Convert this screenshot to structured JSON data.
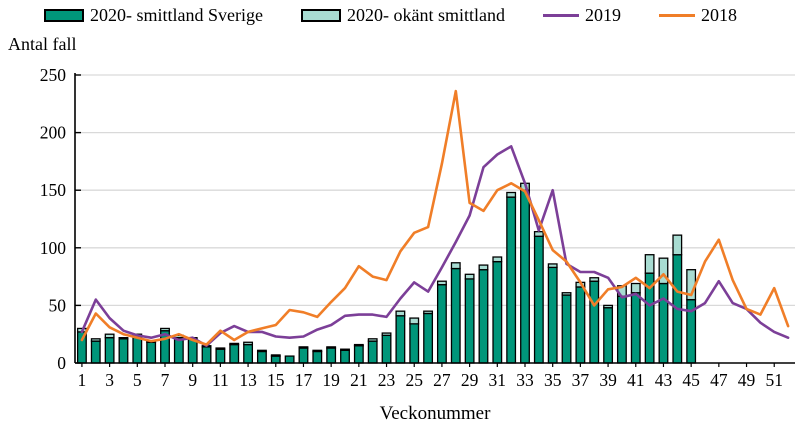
{
  "legend": {
    "items": [
      {
        "label": "2020- smittland Sverige",
        "marker": "bar",
        "color": "#00967A"
      },
      {
        "label": "2020- okänt smittland",
        "marker": "bar",
        "color": "#A8DCD2"
      },
      {
        "label": "2019",
        "marker": "line",
        "color": "#7C3F98"
      },
      {
        "label": "2018",
        "marker": "line",
        "color": "#F07E28"
      }
    ]
  },
  "y_axis": {
    "title": "Antal fall",
    "ticks": [
      0,
      50,
      100,
      150,
      200,
      250
    ]
  },
  "x_axis": {
    "title": "Veckonummer",
    "tick_labels": [
      1,
      3,
      5,
      7,
      9,
      11,
      13,
      15,
      17,
      19,
      21,
      23,
      25,
      27,
      29,
      31,
      33,
      35,
      37,
      39,
      41,
      43,
      45,
      47,
      49,
      51
    ]
  },
  "colors": {
    "bar_sverige": "#00967A",
    "bar_okant": "#A8DCD2",
    "line_2019": "#7C3F98",
    "line_2018": "#F07E28",
    "grid": "#D9D9D9",
    "axis": "#000000",
    "bar_border": "#000000"
  },
  "chart_data": {
    "type": "bar",
    "subtype": "stacked-bars-with-lines",
    "title": "",
    "xlabel": "Veckonummer",
    "ylabel": "Antal fall",
    "ylim": [
      0,
      250
    ],
    "grid": true,
    "legend_position": "top",
    "x": [
      1,
      2,
      3,
      4,
      5,
      6,
      7,
      8,
      9,
      10,
      11,
      12,
      13,
      14,
      15,
      16,
      17,
      18,
      19,
      20,
      21,
      22,
      23,
      24,
      25,
      26,
      27,
      28,
      29,
      30,
      31,
      32,
      33,
      34,
      35,
      36,
      37,
      38,
      39,
      40,
      41,
      42,
      43,
      44,
      45,
      46,
      47,
      48,
      49,
      50,
      51,
      52
    ],
    "series": [
      {
        "name": "2020- smittland Sverige",
        "type": "bar",
        "stack": "2020",
        "color": "#00967A",
        "values": [
          27,
          19,
          22,
          21,
          23,
          18,
          28,
          22,
          21,
          14,
          12,
          16,
          16,
          10,
          6,
          6,
          13,
          10,
          13,
          11,
          15,
          19,
          24,
          41,
          34,
          43,
          68,
          82,
          73,
          81,
          88,
          144,
          150,
          110,
          83,
          59,
          66,
          71,
          48,
          58,
          61,
          78,
          69,
          94,
          55,
          null,
          null,
          null,
          null,
          null,
          null,
          null
        ]
      },
      {
        "name": "2020- okänt smittland",
        "type": "bar",
        "stack": "2020",
        "color": "#A8DCD2",
        "values": [
          3,
          2,
          3,
          1,
          2,
          1,
          2,
          2,
          1,
          1,
          1,
          1,
          2,
          1,
          1,
          0,
          1,
          1,
          1,
          1,
          1,
          2,
          2,
          4,
          5,
          2,
          3,
          5,
          4,
          4,
          4,
          4,
          6,
          4,
          3,
          2,
          4,
          3,
          2,
          9,
          8,
          16,
          22,
          17,
          26,
          null,
          null,
          null,
          null,
          null,
          null,
          null
        ]
      },
      {
        "name": "2019",
        "type": "line",
        "color": "#7C3F98",
        "values": [
          27,
          55,
          39,
          28,
          24,
          22,
          25,
          20,
          22,
          15,
          26,
          32,
          27,
          27,
          23,
          22,
          23,
          29,
          33,
          41,
          42,
          42,
          40,
          56,
          70,
          62,
          83,
          105,
          128,
          170,
          181,
          188,
          156,
          115,
          150,
          86,
          79,
          79,
          74,
          57,
          60,
          50,
          56,
          47,
          45,
          52,
          71,
          52,
          47,
          35,
          27,
          22
        ]
      },
      {
        "name": "2018",
        "type": "line",
        "color": "#F07E28",
        "values": [
          20,
          43,
          31,
          25,
          22,
          19,
          21,
          25,
          20,
          16,
          28,
          20,
          27,
          30,
          33,
          46,
          44,
          40,
          53,
          65,
          84,
          75,
          72,
          97,
          113,
          118,
          173,
          236,
          139,
          132,
          150,
          156,
          149,
          124,
          98,
          88,
          70,
          50,
          64,
          66,
          74,
          65,
          77,
          62,
          59,
          88,
          107,
          72,
          47,
          42,
          65,
          32
        ]
      }
    ]
  }
}
